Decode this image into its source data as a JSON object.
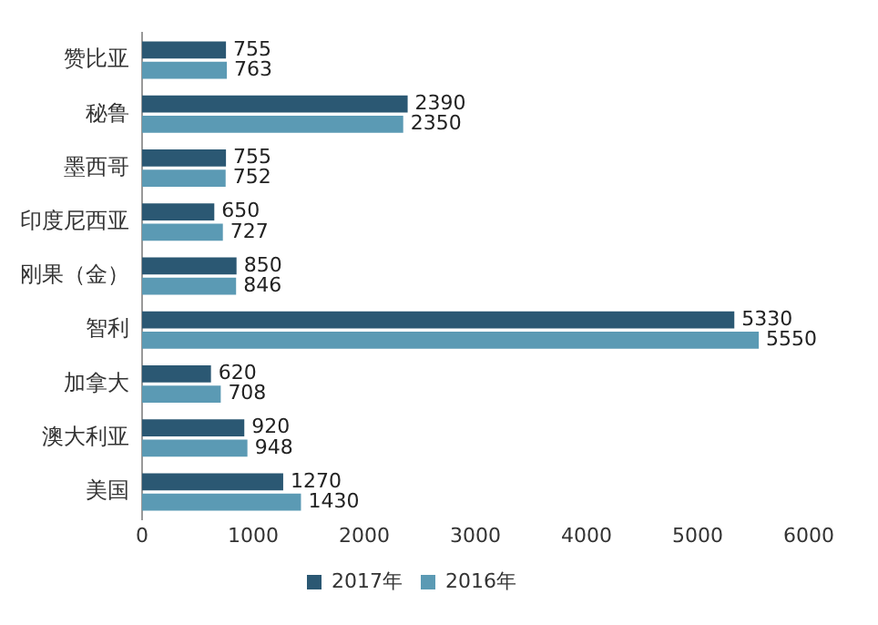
{
  "chart_data": {
    "type": "bar",
    "orientation": "horizontal",
    "categories": [
      "赞比亚",
      "秘鲁",
      "墨西哥",
      "印度尼西亚",
      "刚果（金）",
      "智利",
      "加拿大",
      "澳大利亚",
      "美国"
    ],
    "series": [
      {
        "name": "2017年",
        "color": "#2b5873",
        "values": [
          755,
          2390,
          755,
          650,
          850,
          5330,
          620,
          920,
          1270
        ]
      },
      {
        "name": "2016年",
        "color": "#5b9ab4",
        "values": [
          763,
          2350,
          752,
          727,
          846,
          5550,
          708,
          948,
          1430
        ]
      }
    ],
    "xlim": [
      0,
      6000
    ],
    "xticks": [
      0,
      1000,
      2000,
      3000,
      4000,
      5000,
      6000
    ],
    "grid": false,
    "legend": "bottom",
    "data_labels": true
  }
}
